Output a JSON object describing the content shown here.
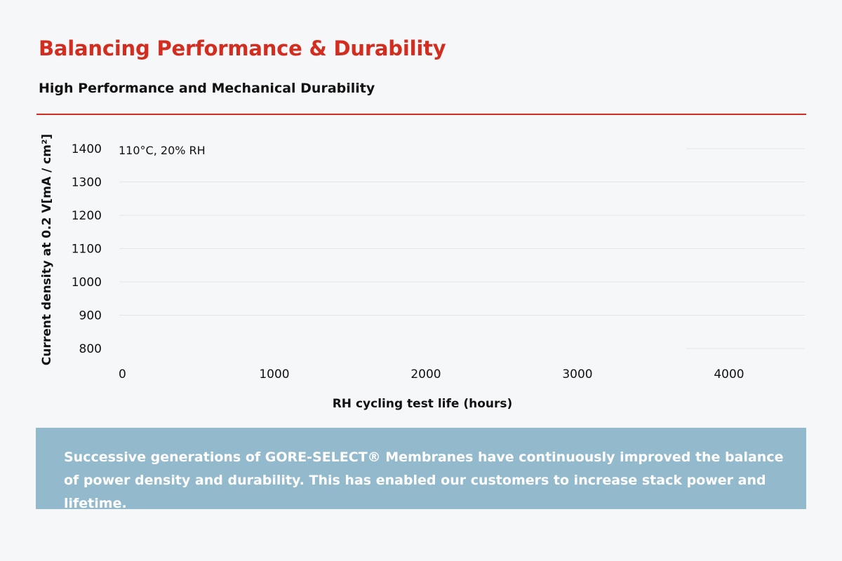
{
  "header": {
    "title": "Balancing Performance & Durability",
    "subtitle": "High Performance and Mechanical Durability"
  },
  "chart_data": {
    "type": "line",
    "condition_label": "110°C, 20% RH",
    "xlabel": "RH cycling test life (hours)",
    "ylabel": "Current density at 0.2 V[mA / cm²]",
    "x_ticks": [
      0,
      1000,
      2000,
      3000,
      4000
    ],
    "y_ticks": [
      800,
      900,
      1000,
      1100,
      1200,
      1300,
      1400
    ],
    "xlim": [
      0,
      4500
    ],
    "ylim": [
      800,
      1400
    ],
    "grid": true,
    "series": []
  },
  "info_box": {
    "text": "Successive generations of GORE-SELECT® Membranes have continuously improved the balance of power density and durability. This has enabled our customers to increase stack power and lifetime."
  },
  "colors": {
    "accent": "#d22d1f",
    "info_box_background": "#93b9cc",
    "grid": "#e2e4e8"
  }
}
